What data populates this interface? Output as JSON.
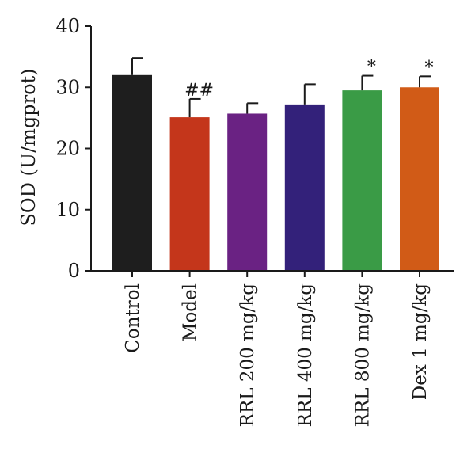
{
  "chart_data": {
    "type": "bar",
    "ylabel": "SOD (U/mgprot)",
    "xlabel": "",
    "ylim": [
      0,
      40
    ],
    "yticks": [
      0,
      10,
      20,
      30,
      40
    ],
    "grid": false,
    "categories": [
      "Control",
      "Model",
      "RRL 200 mg/kg",
      "RRL 400 mg/kg",
      "RRL 800 mg/kg",
      "Dex 1 mg/kg"
    ],
    "values": [
      32.0,
      25.1,
      25.7,
      27.2,
      29.5,
      30.0
    ],
    "errors": [
      2.8,
      3.0,
      1.7,
      3.3,
      2.4,
      1.8
    ],
    "annotations": [
      "",
      "##",
      "",
      "",
      "*",
      "*"
    ],
    "colors": [
      "#1e1e1e",
      "#c4361b",
      "#6a2283",
      "#33217a",
      "#3a9b46",
      "#d15b17"
    ]
  }
}
